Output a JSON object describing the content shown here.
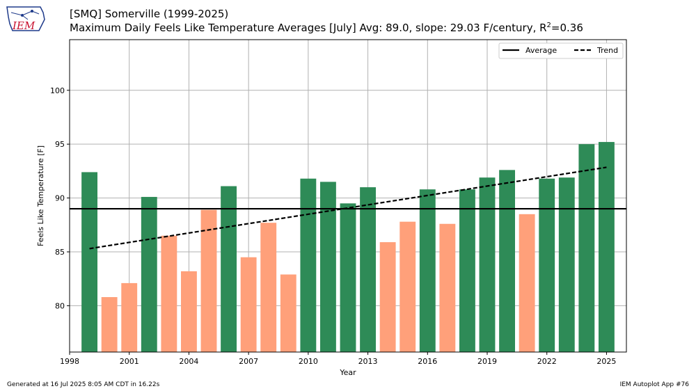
{
  "header": {
    "title_line1": "[SMQ] Somerville (1999-2025)",
    "title_line2_prefix": "Maximum Daily Feels Like Temperature Averages [July]  Avg: 89.0, slope: 29.03 F/century, R",
    "title_line2_sup": "2",
    "title_line2_suffix": "=0.36"
  },
  "logo": {
    "text": "IEM",
    "color": "#c8102e",
    "outline_color": "#1e3a8a"
  },
  "footer": {
    "left": "Generated at 16 Jul 2025 8:05 AM CDT in 16.22s",
    "right": "IEM Autoplot App #76"
  },
  "chart_data": {
    "type": "bar",
    "xlabel": "Year",
    "ylabel": "Feels Like Temperature [F]",
    "xlim": [
      1998,
      2026
    ],
    "ylim": [
      75.7,
      104.7
    ],
    "x_ticks": [
      1998,
      2001,
      2004,
      2007,
      2010,
      2013,
      2016,
      2019,
      2022,
      2025
    ],
    "y_ticks": [
      80,
      85,
      90,
      95,
      100
    ],
    "grid": true,
    "legend": {
      "placement": "top-right",
      "entries": [
        "Average",
        "Trend"
      ]
    },
    "colors": {
      "above": "#2e8b57",
      "below": "#ffa07a"
    },
    "average": 89.0,
    "trend": {
      "start": [
        1999,
        85.3
      ],
      "end": [
        2025,
        92.85
      ]
    },
    "categories": [
      1999,
      2000,
      2001,
      2002,
      2003,
      2004,
      2005,
      2006,
      2007,
      2008,
      2009,
      2010,
      2011,
      2012,
      2013,
      2014,
      2015,
      2016,
      2017,
      2018,
      2019,
      2020,
      2021,
      2022,
      2023,
      2024,
      2025
    ],
    "values": [
      92.4,
      80.8,
      82.1,
      90.1,
      86.5,
      83.2,
      88.9,
      91.1,
      84.5,
      87.7,
      82.9,
      91.8,
      91.5,
      89.5,
      91.0,
      85.9,
      87.8,
      90.8,
      87.6,
      90.8,
      91.9,
      92.6,
      88.5,
      91.8,
      91.9,
      95.0,
      95.2
    ]
  }
}
